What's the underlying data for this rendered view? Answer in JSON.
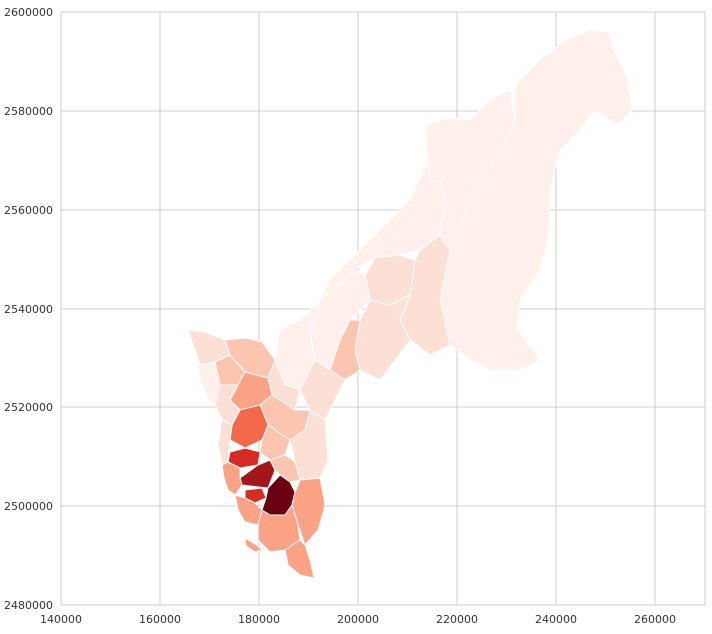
{
  "map": {
    "x_range": [
      140000,
      270000
    ],
    "y_range": [
      2480000,
      2600000
    ],
    "x_ticks": [
      {
        "value": 140000,
        "label": "140000"
      },
      {
        "value": 160000,
        "label": "160000"
      },
      {
        "value": 180000,
        "label": "180000"
      },
      {
        "value": 200000,
        "label": "200000"
      },
      {
        "value": 220000,
        "label": "220000"
      },
      {
        "value": 240000,
        "label": "240000"
      },
      {
        "value": 260000,
        "label": "260000"
      }
    ],
    "y_ticks": [
      {
        "value": 2480000,
        "label": "2480000"
      },
      {
        "value": 2500000,
        "label": "2500000"
      },
      {
        "value": 2520000,
        "label": "2520000"
      },
      {
        "value": 2540000,
        "label": "2540000"
      },
      {
        "value": 2560000,
        "label": "2560000"
      },
      {
        "value": 2580000,
        "label": "2580000"
      },
      {
        "value": 2600000,
        "label": "2600000"
      }
    ],
    "grid": true,
    "colormap": "Reds",
    "colors": {
      "lightest": "#fff0ec",
      "light": "#fde0d5",
      "mid_light": "#fcc5b0",
      "mid": "#fba384",
      "mid_dark": "#f4694a",
      "dark": "#d82b25",
      "darker": "#a4151c",
      "darkest": "#6a0010"
    }
  }
}
